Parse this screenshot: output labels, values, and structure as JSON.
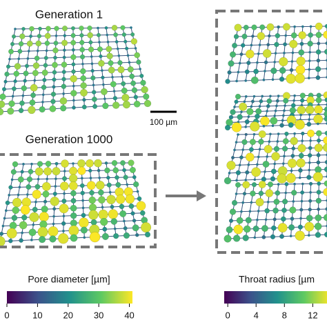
{
  "panels": [
    {
      "title": "Generation 1"
    },
    {
      "title": "Generation 1000"
    }
  ],
  "scale_bar": {
    "label": "100 µm"
  },
  "colorbars": [
    {
      "label": "Pore diameter [µm]",
      "xlim": [
        0,
        41
      ],
      "xticks": [
        0,
        10,
        20,
        30,
        40
      ]
    },
    {
      "label": "Throat radius [µm",
      "xlim": [
        -0.5,
        14.5
      ],
      "xticks": [
        0,
        4,
        8,
        12
      ]
    }
  ]
}
